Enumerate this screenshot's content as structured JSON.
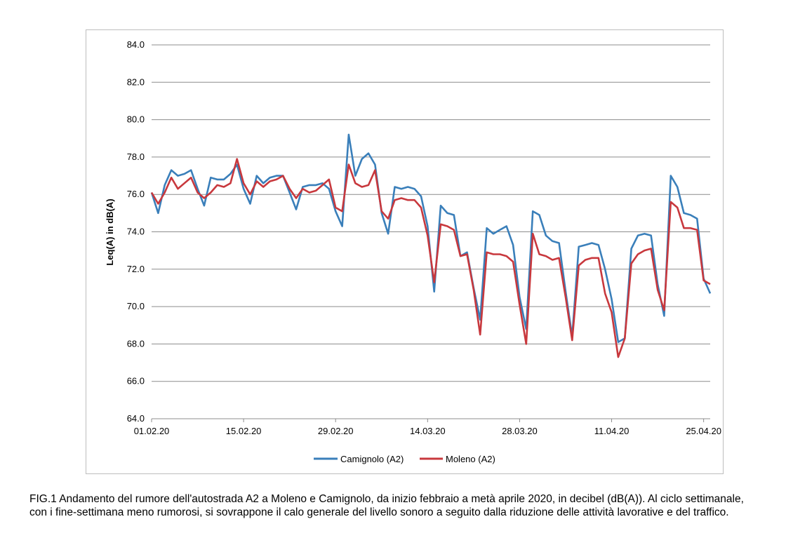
{
  "chart_data": {
    "type": "line",
    "ylabel": "Leq(A) in dB(A)",
    "ylim": [
      64.0,
      84.0
    ],
    "yticks": [
      "64.0",
      "66.0",
      "68.0",
      "70.0",
      "72.0",
      "74.0",
      "76.0",
      "78.0",
      "80.0",
      "82.0",
      "84.0"
    ],
    "x_tick_labels": [
      "01.02.20",
      "15.02.20",
      "29.02.20",
      "14.03.20",
      "28.03.20",
      "11.04.20",
      "25.04.20"
    ],
    "x_start_date": "01.02.20",
    "x_end_date": "26.04.20",
    "grid": "horizontal",
    "legend_position": "bottom",
    "series": [
      {
        "name": "Camignolo (A2)",
        "color": "#3a7fba",
        "values": [
          76.1,
          75.0,
          76.5,
          77.3,
          77.0,
          77.1,
          77.3,
          76.3,
          75.4,
          76.9,
          76.8,
          76.8,
          77.1,
          77.6,
          76.3,
          75.5,
          77.0,
          76.6,
          76.9,
          77.0,
          77.0,
          76.1,
          75.2,
          76.4,
          76.5,
          76.5,
          76.6,
          76.3,
          75.1,
          74.3,
          79.2,
          77.0,
          77.9,
          78.2,
          77.6,
          75.0,
          73.9,
          76.4,
          76.3,
          76.4,
          76.3,
          75.9,
          74.3,
          70.8,
          75.4,
          75.0,
          74.9,
          72.7,
          72.9,
          71.0,
          69.3,
          74.2,
          73.9,
          74.1,
          74.3,
          73.3,
          70.5,
          68.8,
          75.1,
          74.9,
          73.8,
          73.5,
          73.4,
          70.8,
          68.4,
          73.2,
          73.3,
          73.4,
          73.3,
          72.0,
          70.4,
          68.1,
          68.3,
          73.1,
          73.8,
          73.9,
          73.8,
          71.2,
          69.5,
          77.0,
          76.4,
          75.0,
          74.9,
          74.7,
          71.5,
          70.7
        ]
      },
      {
        "name": "Moleno (A2)",
        "color": "#c8383d",
        "values": [
          76.1,
          75.5,
          76.1,
          76.9,
          76.3,
          76.6,
          76.9,
          76.1,
          75.8,
          76.1,
          76.5,
          76.4,
          76.6,
          77.9,
          76.6,
          76.0,
          76.7,
          76.4,
          76.7,
          76.8,
          77.0,
          76.3,
          75.8,
          76.3,
          76.1,
          76.2,
          76.5,
          76.8,
          75.3,
          75.1,
          77.6,
          76.6,
          76.4,
          76.5,
          77.3,
          75.1,
          74.7,
          75.7,
          75.8,
          75.7,
          75.7,
          75.3,
          73.8,
          71.3,
          74.4,
          74.3,
          74.1,
          72.7,
          72.8,
          70.9,
          68.5,
          72.9,
          72.8,
          72.8,
          72.7,
          72.4,
          70.1,
          68.0,
          73.9,
          72.8,
          72.7,
          72.5,
          72.6,
          70.5,
          68.2,
          72.2,
          72.5,
          72.6,
          72.6,
          70.7,
          69.7,
          67.3,
          68.3,
          72.3,
          72.8,
          73.0,
          73.1,
          70.9,
          69.8,
          75.6,
          75.3,
          74.2,
          74.2,
          74.1,
          71.4,
          71.2
        ]
      }
    ]
  },
  "caption": "FIG.1 Andamento del rumore dell'autostrada A2 a Moleno e Camignolo, da inizio febbraio a metà aprile 2020, in decibel (dB(A)). Al ciclo settimanale, con i fine-settimana meno rumorosi, si sovrappone il calo generale del livello sonoro a seguito dalla riduzione delle attività lavorative e del traffico."
}
